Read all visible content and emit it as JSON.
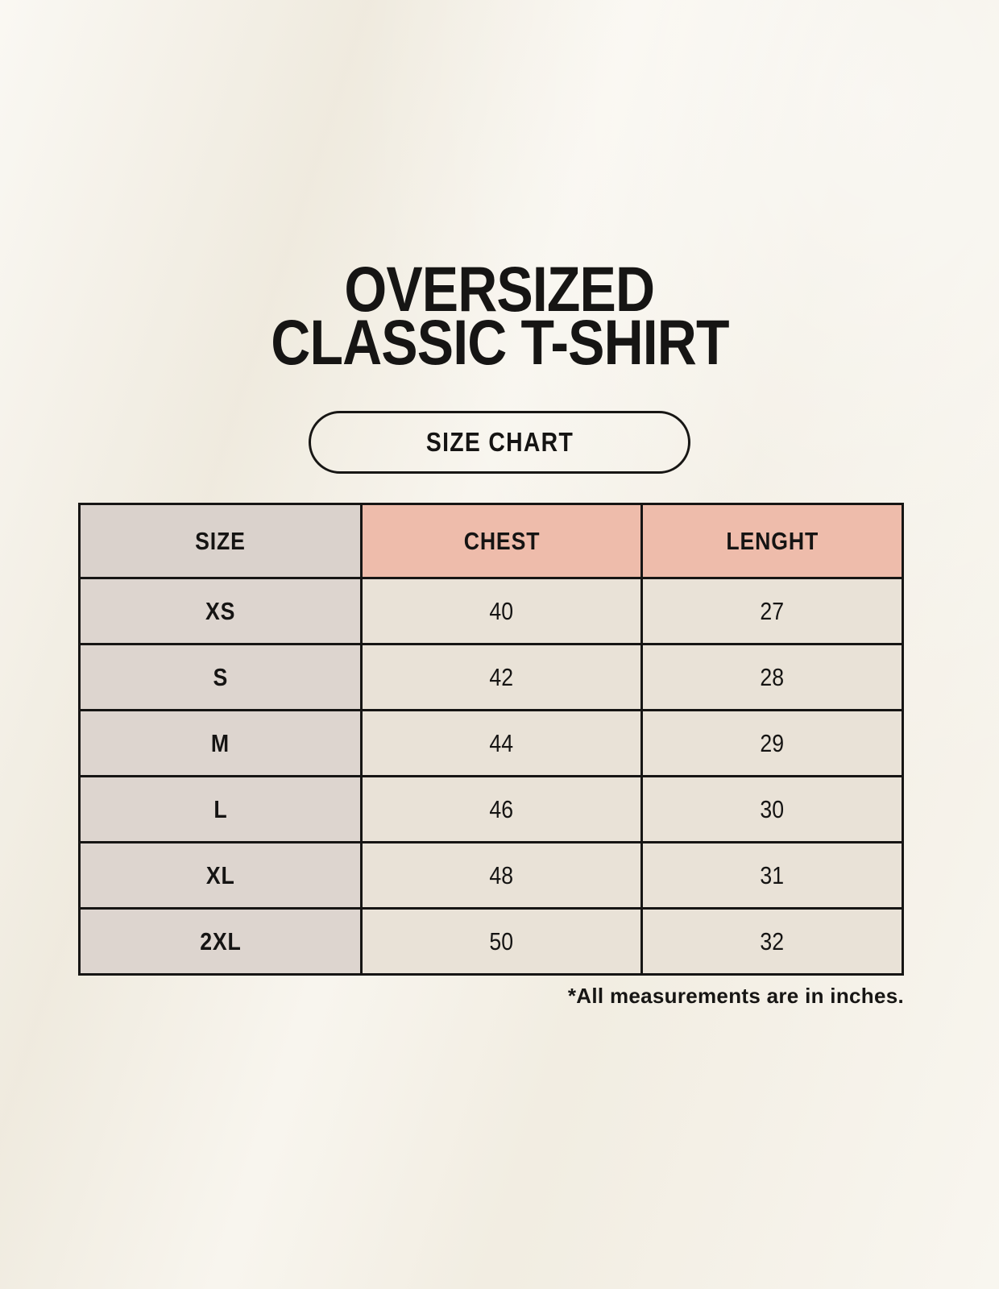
{
  "page": {
    "title_line1": "OVERSIZED",
    "title_line2": "CLASSIC T-SHIRT",
    "badge_label": "SIZE CHART",
    "footnote": "*All measurements are in inches."
  },
  "colors": {
    "background": "#f5f1e7",
    "header_size_bg": "#dad2cc",
    "header_measure_bg": "#eebcab",
    "row_label_bg": "#ddd5cf",
    "value_cell_bg": "#e9e2d7",
    "border": "#161514",
    "text": "#151413"
  },
  "size_table": {
    "columns": [
      "SIZE",
      "CHEST",
      "LENGHT"
    ],
    "rows": [
      {
        "size": "XS",
        "chest": "40",
        "lenght": "27"
      },
      {
        "size": "S",
        "chest": "42",
        "lenght": "28"
      },
      {
        "size": "M",
        "chest": "44",
        "lenght": "29"
      },
      {
        "size": "L",
        "chest": "46",
        "lenght": "30"
      },
      {
        "size": "XL",
        "chest": "48",
        "lenght": "31"
      },
      {
        "size": "2XL",
        "chest": "50",
        "lenght": "32"
      }
    ]
  }
}
